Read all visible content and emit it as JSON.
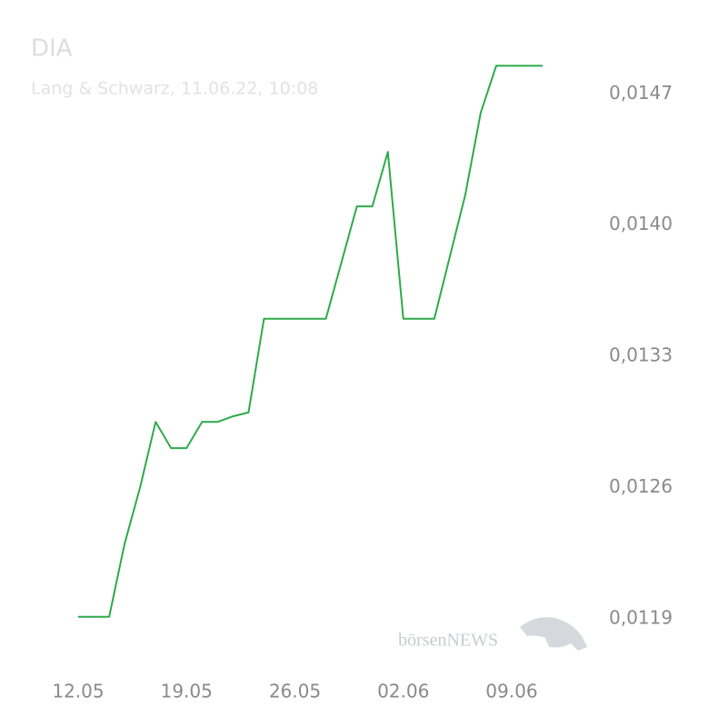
{
  "chart_data": {
    "type": "line",
    "title": "DIA",
    "subtitle": "Lang & Schwarz, 11.06.22, 10:08",
    "watermark": "börsenNEWS",
    "categories": [
      "12.05",
      null,
      null,
      null,
      null,
      null,
      null,
      "19.05",
      null,
      null,
      null,
      null,
      null,
      null,
      "26.05",
      null,
      null,
      null,
      null,
      null,
      null,
      "02.06",
      null,
      null,
      null,
      null,
      null,
      null,
      "09.06",
      null,
      null
    ],
    "values": [
      0.01191,
      0.01191,
      0.01191,
      0.0123,
      0.0126,
      0.01295,
      0.01281,
      0.01281,
      0.01295,
      0.01295,
      0.01298,
      0.013,
      0.0135,
      0.0135,
      0.0135,
      0.0135,
      0.0135,
      0.0138,
      0.0141,
      0.0141,
      0.01439,
      0.0135,
      0.0135,
      0.0135,
      0.01383,
      0.01416,
      0.0146,
      0.01485,
      0.01485,
      0.01485,
      0.01485
    ],
    "color": "#2eaa4a",
    "ylim": [
      0.01171,
      0.01491
    ],
    "yticks": [
      {
        "value": 0.0119,
        "label": "0,0119"
      },
      {
        "value": 0.0126,
        "label": "0,0126"
      },
      {
        "value": 0.0133,
        "label": "0,0133"
      },
      {
        "value": 0.014,
        "label": "0,0140"
      },
      {
        "value": 0.0147,
        "label": "0,0147"
      }
    ],
    "grid": false
  }
}
